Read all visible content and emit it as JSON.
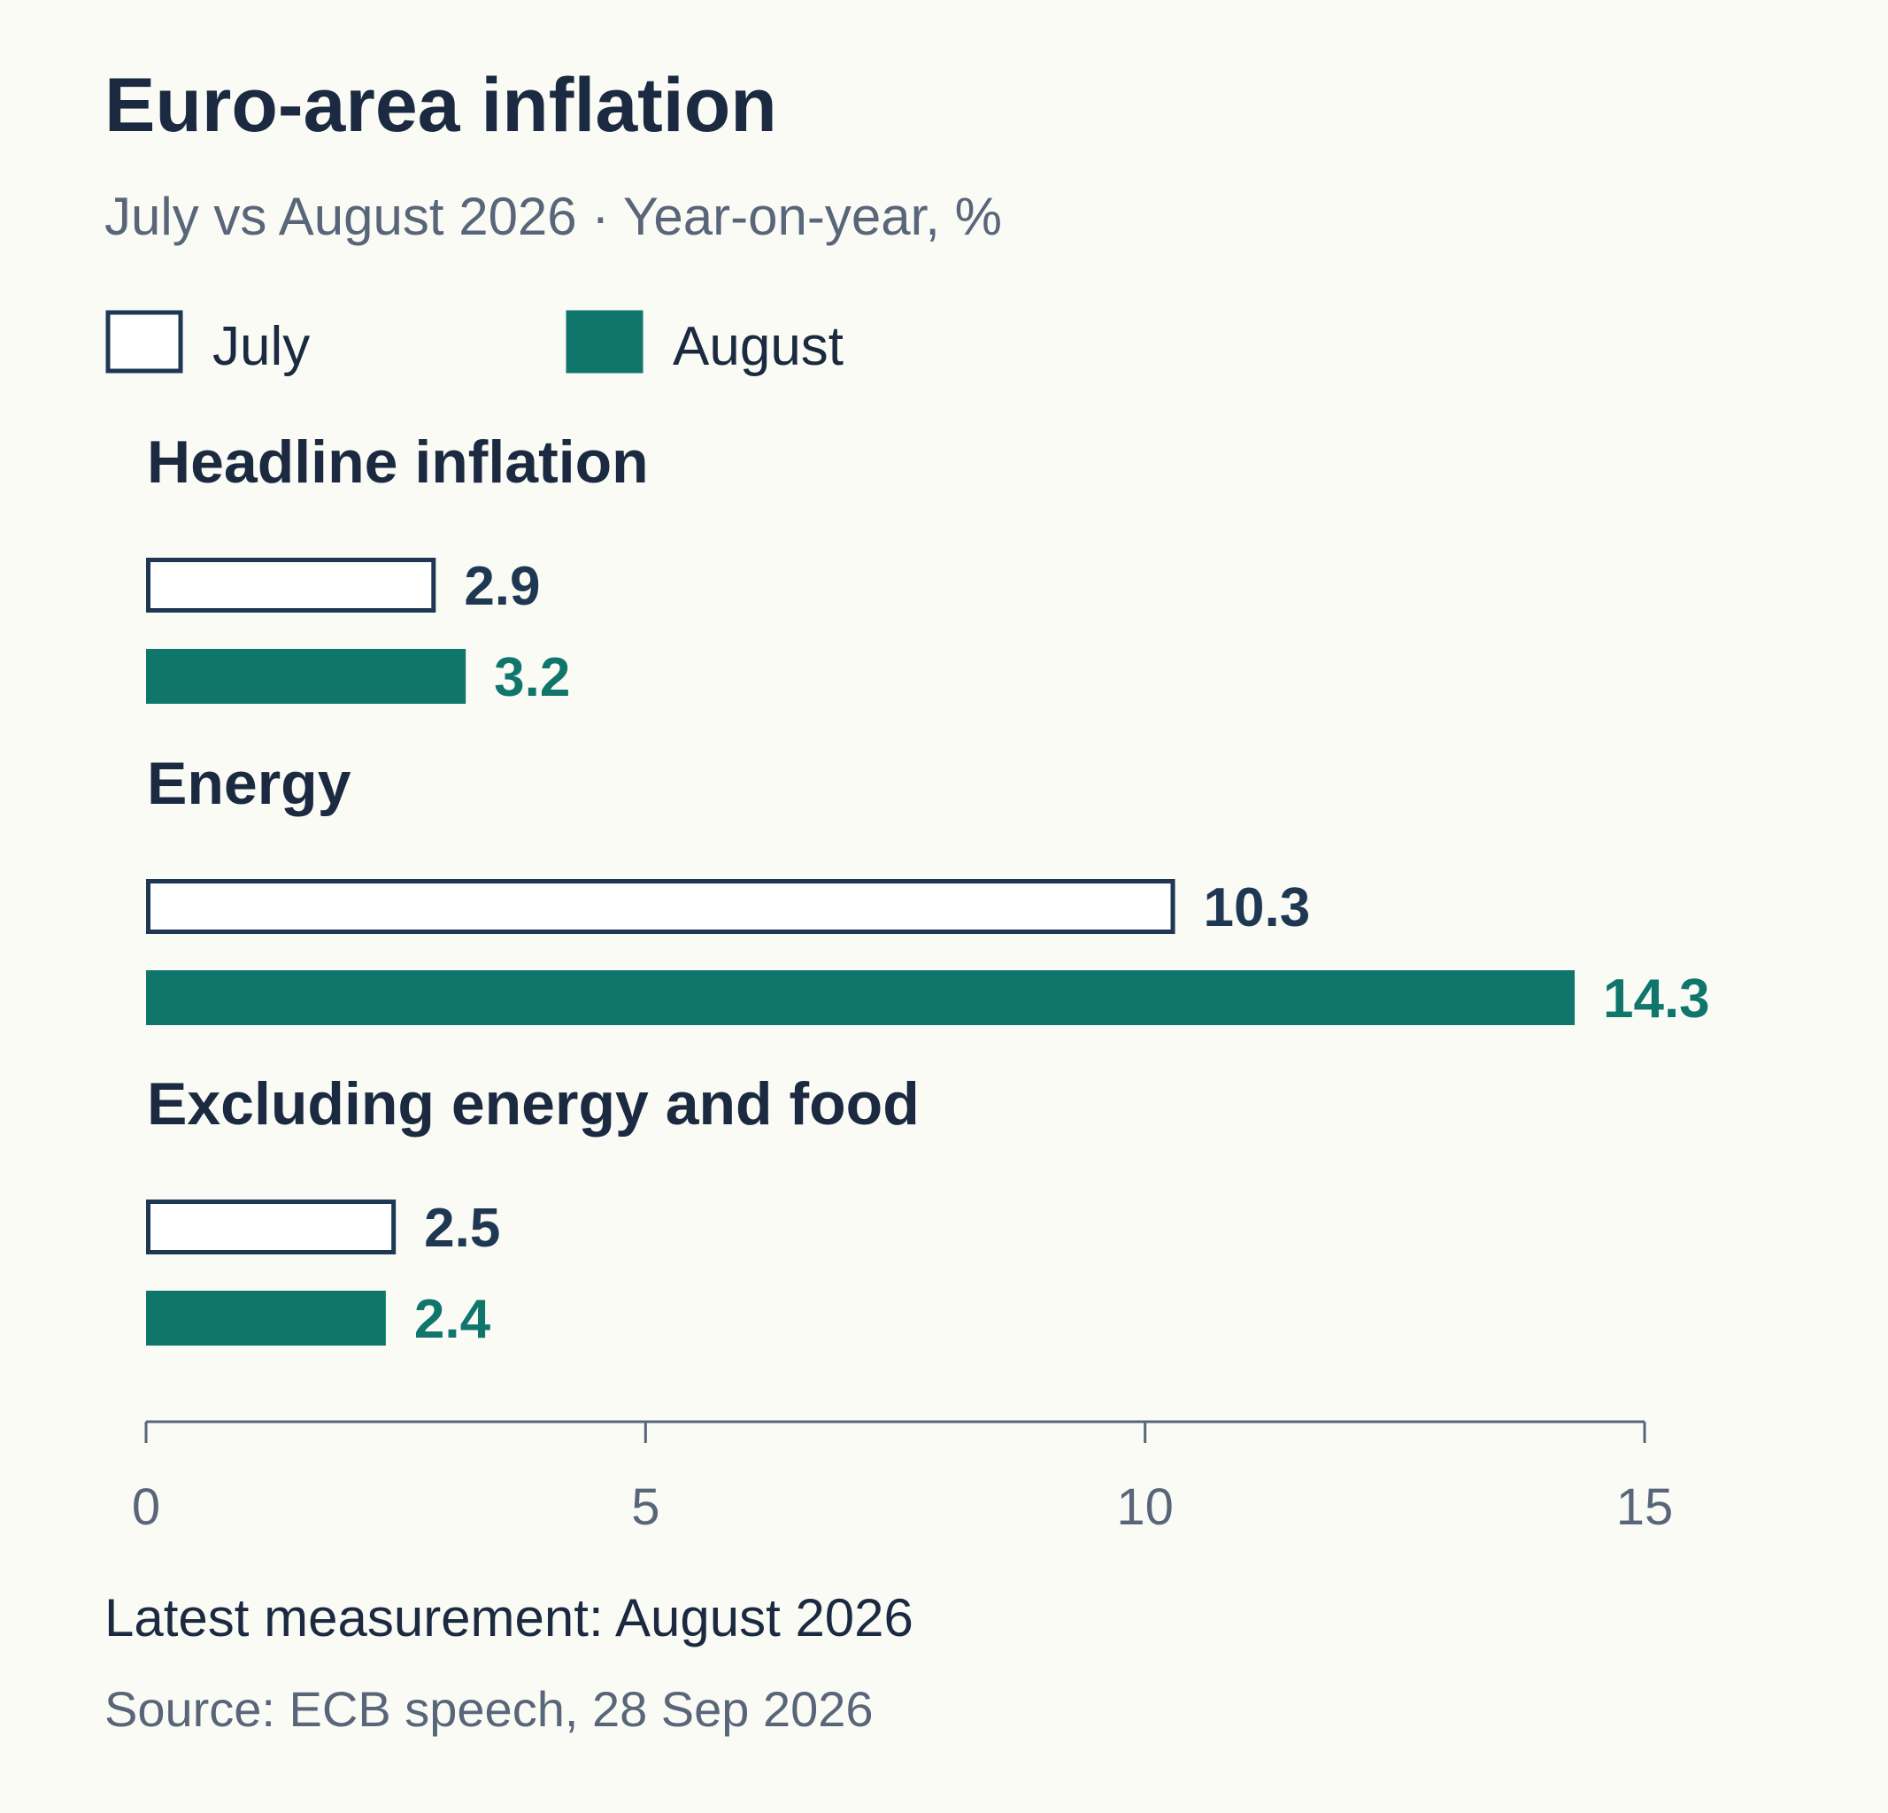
{
  "chart_data": {
    "type": "bar",
    "orientation": "horizontal",
    "title": "Euro-area inflation",
    "subtitle": "July vs August 2026 · Year-on-year, %",
    "categories": [
      "Headline inflation",
      "Energy",
      "Excluding energy and food"
    ],
    "series": [
      {
        "name": "July",
        "values": [
          2.9,
          10.3,
          2.5
        ],
        "color": "#ffffff",
        "stroke": "#1e3752",
        "label_color": "#1e3752"
      },
      {
        "name": "August",
        "values": [
          3.2,
          14.3,
          2.4
        ],
        "color": "#10766c",
        "stroke": "#10766c",
        "label_color": "#10766c"
      }
    ],
    "value_labels": [
      [
        "2.9",
        "3.2"
      ],
      [
        "10.3",
        "14.3"
      ],
      [
        "2.5",
        "2.4"
      ]
    ],
    "xlim": [
      0,
      15
    ],
    "xticks": [
      0,
      5,
      10,
      15
    ],
    "xtick_labels": [
      "0",
      "5",
      "10",
      "15"
    ],
    "legend_position": "top-left",
    "grid": false
  },
  "footer": {
    "note": "Latest measurement: August 2026",
    "source": "Source: ECB speech, 28 Sep 2026"
  },
  "colors": {
    "background": "#fbfbf6",
    "text": "#1b2a40",
    "muted": "#59667a",
    "axis": "#59667a"
  }
}
